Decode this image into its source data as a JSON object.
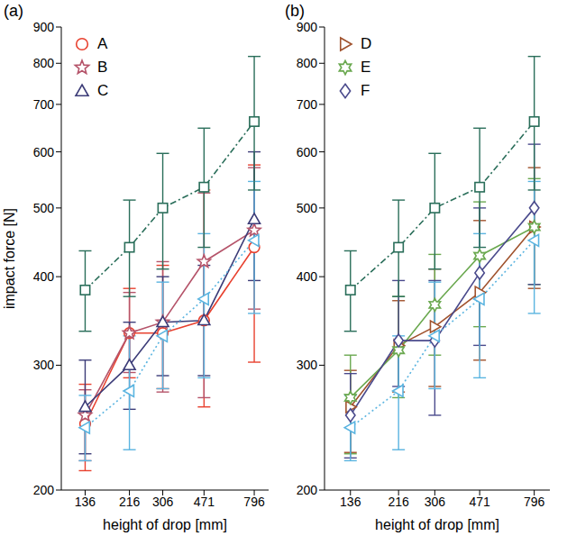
{
  "chart_data": [
    {
      "type": "line",
      "title": "(a)",
      "x_label": "height of drop [mm]",
      "y_label": "impact force [N]",
      "x": [
        136,
        216,
        306,
        471,
        796
      ],
      "xlim": [
        106,
        925
      ],
      "xticks": [
        136,
        216,
        306,
        471,
        796
      ],
      "ylim": [
        200,
        900
      ],
      "yticks": [
        200,
        300,
        400,
        500,
        600,
        700,
        800,
        900
      ],
      "log": true,
      "grid": false,
      "legend": "upper left",
      "series": [
        {
          "name": "A",
          "color": "#e8412f",
          "marker": "circle",
          "line_style": "solid",
          "values": [
            248,
            333,
            333,
            347,
            440
          ],
          "error_low": [
            213,
            288,
            278,
            262,
            303
          ],
          "error_high": [
            282,
            385,
            415,
            530,
            575
          ]
        },
        {
          "name": "B",
          "color": "#b5546a",
          "marker": "star",
          "line_style": "solid",
          "values": [
            255,
            333,
            345,
            420,
            465
          ],
          "error_low": [
            220,
            293,
            275,
            270,
            360
          ],
          "error_high": [
            277,
            380,
            420,
            525,
            570
          ]
        },
        {
          "name": "C",
          "color": "#3c3c78",
          "marker": "triangle",
          "line_style": "solid",
          "values": [
            262,
            300,
            345,
            347,
            482
          ],
          "error_low": [
            225,
            260,
            290,
            290,
            395
          ],
          "error_high": [
            305,
            345,
            400,
            415,
            600
          ]
        },
        {
          "color": "#5ab4e0",
          "marker": "triangle_left",
          "line_style": "dotted",
          "values": [
            245,
            276,
            330,
            372,
            450
          ],
          "error_low": [
            220,
            228,
            278,
            288,
            355
          ],
          "error_high": [
            272,
            330,
            393,
            460,
            545
          ]
        },
        {
          "color": "#2a6e5a",
          "marker": "square",
          "line_style": "dashdot",
          "values": [
            383,
            440,
            500,
            535,
            662
          ],
          "error_low": [
            335,
            375,
            410,
            440,
            530
          ],
          "error_high": [
            435,
            513,
            597,
            648,
            818
          ]
        }
      ]
    },
    {
      "type": "line",
      "title": "(b)",
      "x_label": "height of drop [mm]",
      "x": [
        136,
        216,
        306,
        471,
        796
      ],
      "xlim": [
        106,
        925
      ],
      "xticks": [
        136,
        216,
        306,
        471,
        796
      ],
      "ylim": [
        200,
        900
      ],
      "yticks": [
        200,
        300,
        400,
        500,
        600,
        700,
        800,
        900
      ],
      "log": true,
      "grid": false,
      "legend": "upper left",
      "series": [
        {
          "name": "D",
          "color": "#a0522d",
          "marker": "triangle_right",
          "line_style": "solid",
          "values": [
            262,
            320,
            340,
            380,
            470
          ],
          "error_low": [
            226,
            275,
            280,
            305,
            385
          ],
          "error_high": [
            295,
            370,
            410,
            480,
            570
          ]
        },
        {
          "name": "E",
          "color": "#6aa84f",
          "marker": "hexagram",
          "line_style": "solid",
          "values": [
            270,
            315,
            365,
            428,
            470
          ],
          "error_low": [
            225,
            270,
            310,
            340,
            390
          ],
          "error_high": [
            310,
            375,
            430,
            510,
            550
          ]
        },
        {
          "name": "F",
          "color": "#4a4a8c",
          "marker": "diamond",
          "line_style": "solid",
          "values": [
            255,
            325,
            325,
            405,
            500
          ],
          "error_low": [
            222,
            280,
            255,
            320,
            390
          ],
          "error_high": [
            292,
            395,
            395,
            500,
            615
          ]
        },
        {
          "color": "#5ab4e0",
          "marker": "triangle_left",
          "line_style": "dotted",
          "values": [
            245,
            276,
            330,
            372,
            450
          ],
          "error_low": [
            220,
            228,
            278,
            288,
            355
          ],
          "error_high": [
            272,
            330,
            393,
            460,
            545
          ]
        },
        {
          "color": "#2a6e5a",
          "marker": "square",
          "line_style": "dashdot",
          "values": [
            383,
            440,
            500,
            535,
            662
          ],
          "error_low": [
            335,
            375,
            410,
            440,
            530
          ],
          "error_high": [
            435,
            513,
            597,
            648,
            818
          ]
        }
      ]
    }
  ]
}
